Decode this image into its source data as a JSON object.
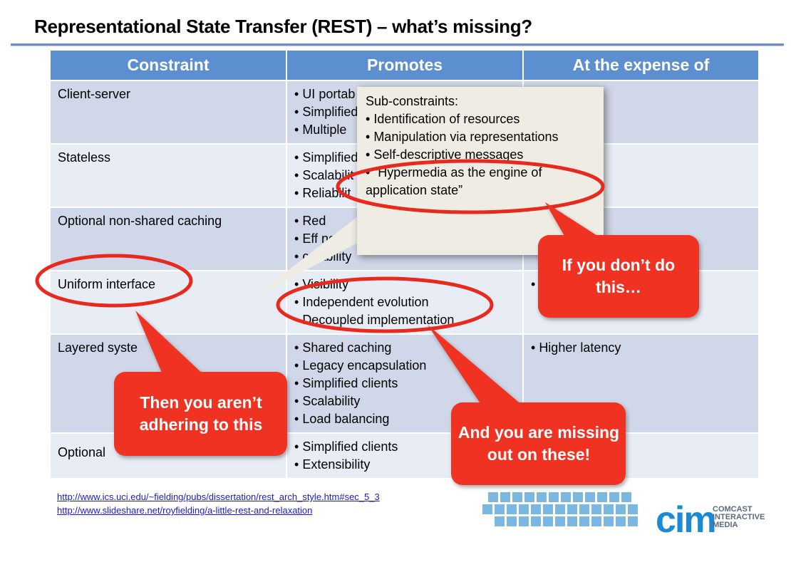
{
  "title": "Representational State Transfer (REST) – what’s missing?",
  "table": {
    "headers": [
      "Constraint",
      "Promotes",
      "At the expense of"
    ],
    "rows": [
      {
        "constraint": "Client-server",
        "promotes": [
          "UI portab",
          "Simplified",
          "Multiple "
        ],
        "expense": []
      },
      {
        "constraint": "Stateless",
        "promotes": [
          "Simplified",
          "Scalabilit",
          "Reliabilit"
        ],
        "expense": []
      },
      {
        "constraint": "Optional non-shared caching",
        "promotes": [
          "Red",
          "Eff  ncy",
          "calability"
        ],
        "expense": []
      },
      {
        "constraint": "Uniform interface",
        "promotes": [
          "Visibility",
          "Independent evolution",
          "Decoupled implementation"
        ],
        "expense": [
          ""
        ]
      },
      {
        "constraint": "Layered syste",
        "promotes": [
          "Shared caching",
          "Legacy encapsulation",
          "Simplified clients",
          "Scalability",
          "Load balancing"
        ],
        "expense": [
          "Higher latency"
        ]
      },
      {
        "constraint": "Optional",
        "promotes": [
          "Simplified clients",
          "Extensibility"
        ],
        "expense": []
      }
    ]
  },
  "tooltip": {
    "heading": "Sub-constraints:",
    "items": [
      "Identification of resources",
      "Manipulation via representations",
      "Self-descriptive messages",
      "“Hypermedia as the engine of application state”"
    ]
  },
  "callouts": {
    "dont_do": "If you don’t do this…",
    "not_adhering": "Then you aren’t adhering to this",
    "missing_out": "And you are missing out on these!"
  },
  "references": [
    "http://www.ics.uci.edu/~fielding/pubs/dissertation/rest_arch_style.htm#sec_5_3",
    "http://www.slideshare.net/royfielding/a-little-rest-and-relaxation"
  ],
  "logo": {
    "mark": "cim",
    "line1": "COMCAST",
    "line2": "INTERACTIVE",
    "line3": "MEDIA"
  },
  "colors": {
    "header": "#5b8fcf",
    "callout": "#f03020",
    "ellipse": "#e82a1e",
    "tooltip": "#efece4"
  }
}
